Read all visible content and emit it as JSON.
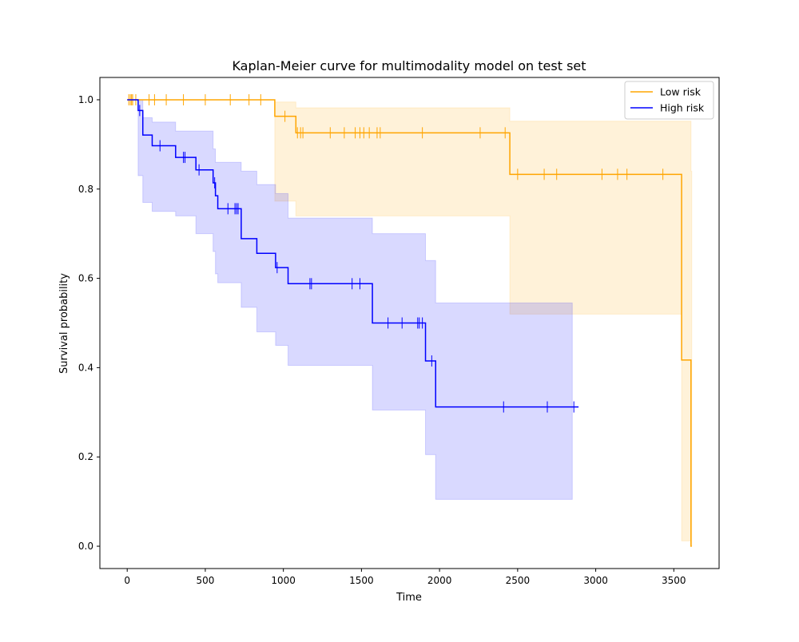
{
  "chart_data": {
    "type": "line",
    "title": "Kaplan-Meier curve for multimodality model on test set",
    "xlabel": "Time",
    "ylabel": "Survival probability",
    "xlim": [
      -175,
      3790
    ],
    "ylim": [
      -0.05,
      1.05
    ],
    "xticks": [
      0,
      500,
      1000,
      1500,
      2000,
      2500,
      3000,
      3500
    ],
    "xtick_labels": [
      "0",
      "500",
      "1000",
      "1500",
      "2000",
      "2500",
      "3000",
      "3500"
    ],
    "yticks": [
      0.0,
      0.2,
      0.4,
      0.6,
      0.8,
      1.0
    ],
    "ytick_labels": [
      "0.0",
      "0.2",
      "0.4",
      "0.6",
      "0.8",
      "1.0"
    ],
    "grid": false,
    "legend": "top-right",
    "series": [
      {
        "name": "Low risk",
        "color": "#ffa500",
        "band_color": "#ffa500",
        "steps": [
          [
            0,
            1.0
          ],
          [
            945,
            0.963
          ],
          [
            1080,
            0.926
          ],
          [
            2450,
            0.833
          ],
          [
            3550,
            0.417
          ],
          [
            3610,
            0.0
          ]
        ],
        "end_x": 3615,
        "ci": [
          [
            0,
            1.0,
            1.0
          ],
          [
            945,
            0.773,
            0.995
          ],
          [
            1080,
            0.74,
            0.982
          ],
          [
            2450,
            0.52,
            0.952
          ],
          [
            3550,
            0.012,
            0.952
          ],
          [
            3610,
            0.0,
            0.84
          ]
        ],
        "ci_end_x": 3615,
        "censored": [
          10,
          20,
          28,
          35,
          55,
          140,
          175,
          250,
          360,
          500,
          660,
          780,
          855,
          1010,
          1090,
          1110,
          1125,
          1300,
          1390,
          1460,
          1490,
          1515,
          1550,
          1600,
          1620,
          1890,
          2260,
          2420,
          2500,
          2670,
          2750,
          3040,
          3140,
          3200,
          3430
        ]
      },
      {
        "name": "High risk",
        "color": "#0000ff",
        "band_color": "#0000ff",
        "steps": [
          [
            0,
            1.0
          ],
          [
            70,
            0.976
          ],
          [
            100,
            0.921
          ],
          [
            160,
            0.897
          ],
          [
            310,
            0.871
          ],
          [
            440,
            0.843
          ],
          [
            550,
            0.814
          ],
          [
            565,
            0.785
          ],
          [
            580,
            0.756
          ],
          [
            730,
            0.689
          ],
          [
            830,
            0.656
          ],
          [
            950,
            0.624
          ],
          [
            1030,
            0.588
          ],
          [
            1570,
            0.5
          ],
          [
            1910,
            0.415
          ],
          [
            1975,
            0.312
          ]
        ],
        "end_x": 2890,
        "ci": [
          [
            0,
            1.0,
            1.0
          ],
          [
            70,
            0.83,
            1.0
          ],
          [
            100,
            0.77,
            0.96
          ],
          [
            160,
            0.75,
            0.95
          ],
          [
            310,
            0.74,
            0.93
          ],
          [
            440,
            0.7,
            0.93
          ],
          [
            550,
            0.66,
            0.89
          ],
          [
            565,
            0.61,
            0.86
          ],
          [
            580,
            0.59,
            0.86
          ],
          [
            730,
            0.535,
            0.84
          ],
          [
            830,
            0.48,
            0.81
          ],
          [
            950,
            0.45,
            0.79
          ],
          [
            1030,
            0.405,
            0.735
          ],
          [
            1570,
            0.305,
            0.7
          ],
          [
            1910,
            0.205,
            0.64
          ],
          [
            1975,
            0.105,
            0.545
          ]
        ],
        "ci_end_x": 2850,
        "censored": [
          80,
          210,
          360,
          370,
          460,
          560,
          645,
          690,
          700,
          710,
          960,
          1170,
          1180,
          1440,
          1490,
          1670,
          1760,
          1860,
          1870,
          1890,
          1950,
          2410,
          2690,
          2860
        ]
      }
    ]
  }
}
